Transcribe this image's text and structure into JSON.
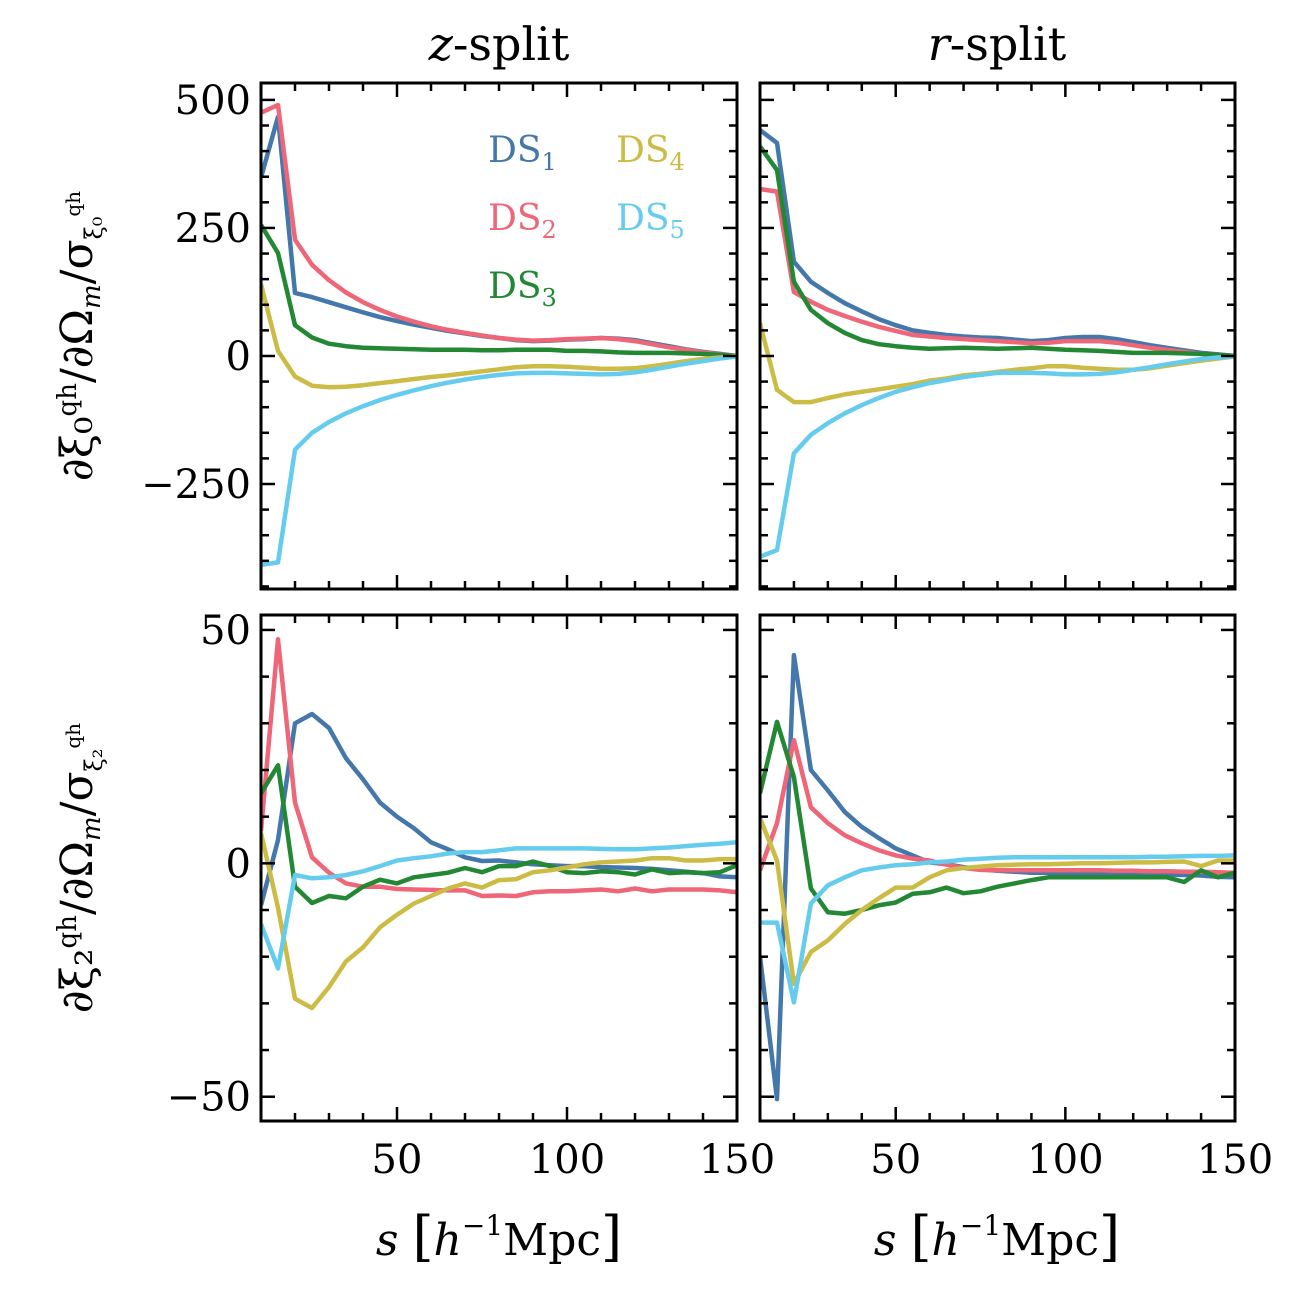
{
  "chart_data": {
    "type": "line",
    "layout": "2x2 grid",
    "columns": [
      {
        "title_var": "z",
        "title_rest": "-split"
      },
      {
        "title_var": "r",
        "title_rest": "-split"
      }
    ],
    "xlabel": {
      "var": "s",
      "unit_open": "[",
      "unit_h": "h",
      "unit_exp": "−1",
      "unit_rest": "Mpc",
      "unit_close": "]"
    },
    "rows": [
      {
        "ylabel": {
          "num": "∂ξ₀",
          "num_sup": "qh",
          "mid": "/∂Ω",
          "mid_sub": "m",
          "den": "/σ",
          "den_sub": "ξ₀",
          "den_sup": "qh"
        },
        "ylim": [
          -455,
          533
        ],
        "yticks": [
          500,
          250,
          0,
          -250
        ],
        "ytick_labels": [
          "500",
          "250",
          "0",
          "−250"
        ],
        "yminor_step": 50
      },
      {
        "ylabel": {
          "num": "∂ξ₂",
          "num_sup": "qh",
          "mid": "/∂Ω",
          "mid_sub": "m",
          "den": "/σ",
          "den_sub": "ξ₂",
          "den_sup": "qh"
        },
        "ylim": [
          -55.2,
          53.2
        ],
        "yticks": [
          50,
          0,
          -50
        ],
        "ytick_labels": [
          "50",
          "0",
          "−50"
        ],
        "yminor_step": 10
      }
    ],
    "xlim": [
      10,
      150
    ],
    "xticks": [
      50,
      100,
      150
    ],
    "xtick_labels": [
      "50",
      "100",
      "150"
    ],
    "xminor_step": 10,
    "x": [
      10,
      15,
      20,
      25,
      30,
      35,
      40,
      45,
      50,
      55,
      60,
      65,
      70,
      75,
      80,
      85,
      90,
      95,
      100,
      105,
      110,
      115,
      120,
      125,
      130,
      135,
      140,
      145,
      150
    ],
    "legend": {
      "placement": "top-right of top-left panel",
      "entries": [
        {
          "label": "DS",
          "sub": "1",
          "color": "#4477AA"
        },
        {
          "label": "DS",
          "sub": "2",
          "color": "#EE6677"
        },
        {
          "label": "DS",
          "sub": "3",
          "color": "#228833"
        },
        {
          "label": "DS",
          "sub": "4",
          "color": "#CCBB44"
        },
        {
          "label": "DS",
          "sub": "5",
          "color": "#66CCEE"
        }
      ]
    },
    "panels": [
      {
        "name": "z-split-monopole",
        "row": 0,
        "col": 0,
        "series": [
          {
            "name": "DS1",
            "color": "#4477AA",
            "values": [
              348,
              467,
              123,
              115,
              105,
              95,
              85,
              76,
              68,
              61,
              55,
              49,
              44,
              39,
              35,
              31,
              29,
              30,
              32,
              33,
              35,
              34,
              31,
              25,
              19,
              13,
              8,
              4,
              0
            ]
          },
          {
            "name": "DS2",
            "color": "#EE6677",
            "values": [
              475,
              490,
              227,
              178,
              148,
              124,
              105,
              90,
              77,
              67,
              58,
              51,
              45,
              40,
              35,
              32,
              30,
              31,
              33,
              34,
              35,
              33,
              29,
              23,
              17,
              12,
              7,
              3,
              0
            ]
          },
          {
            "name": "DS3",
            "color": "#228833",
            "values": [
              256,
              201,
              60,
              36,
              24,
              19,
              16,
              15,
              14,
              13,
              12,
              12,
              12,
              11,
              11,
              12,
              12,
              12,
              10,
              10,
              9,
              7,
              6,
              6,
              6,
              5,
              4,
              2,
              0
            ]
          },
          {
            "name": "DS4",
            "color": "#CCBB44",
            "values": [
              140,
              10,
              -40,
              -58,
              -61,
              -60,
              -57,
              -53,
              -49,
              -45,
              -41,
              -38,
              -34,
              -30,
              -26,
              -22,
              -20,
              -20,
              -21,
              -23,
              -25,
              -25,
              -24,
              -20,
              -15,
              -10,
              -6,
              -3,
              0
            ]
          },
          {
            "name": "DS5",
            "color": "#66CCEE",
            "values": [
              -408,
              -403,
              -183,
              -150,
              -129,
              -112,
              -98,
              -86,
              -76,
              -67,
              -59,
              -52,
              -46,
              -41,
              -37,
              -34,
              -33,
              -33,
              -34,
              -35,
              -36,
              -35,
              -32,
              -27,
              -21,
              -15,
              -10,
              -5,
              -1
            ]
          }
        ]
      },
      {
        "name": "r-split-monopole",
        "row": 0,
        "col": 1,
        "series": [
          {
            "name": "DS1",
            "color": "#4477AA",
            "values": [
              441,
              416,
              184,
              145,
              123,
              103,
              87,
              72,
              60,
              50,
              45,
              41,
              38,
              36,
              35,
              32,
              29,
              31,
              35,
              37,
              37,
              33,
              27,
              21,
              16,
              11,
              6,
              3,
              0
            ]
          },
          {
            "name": "DS2",
            "color": "#EE6677",
            "values": [
              326,
              321,
              125,
              106,
              90,
              78,
              67,
              57,
              49,
              41,
              38,
              35,
              33,
              31,
              29,
              27,
              25,
              26,
              29,
              29,
              29,
              26,
              21,
              16,
              12,
              8,
              4,
              2,
              0
            ]
          },
          {
            "name": "DS3",
            "color": "#228833",
            "values": [
              409,
              363,
              145,
              90,
              64,
              45,
              31,
              23,
              19,
              16,
              14,
              15,
              16,
              15,
              14,
              15,
              16,
              14,
              12,
              11,
              10,
              8,
              6,
              6,
              6,
              5,
              4,
              2,
              0
            ]
          },
          {
            "name": "DS4",
            "color": "#CCBB44",
            "values": [
              64,
              -66,
              -90,
              -90,
              -82,
              -75,
              -70,
              -65,
              -60,
              -55,
              -48,
              -44,
              -38,
              -35,
              -31,
              -27,
              -24,
              -20,
              -20,
              -23,
              -25,
              -27,
              -27,
              -24,
              -19,
              -14,
              -9,
              -5,
              -1
            ]
          },
          {
            "name": "DS5",
            "color": "#66CCEE",
            "values": [
              -392,
              -379,
              -190,
              -154,
              -131,
              -112,
              -96,
              -82,
              -70,
              -61,
              -53,
              -47,
              -41,
              -37,
              -33,
              -33,
              -33,
              -34,
              -36,
              -36,
              -35,
              -32,
              -27,
              -22,
              -16,
              -11,
              -6,
              -3,
              -1
            ]
          }
        ]
      },
      {
        "name": "z-split-quadrupole",
        "row": 1,
        "col": 0,
        "series": [
          {
            "name": "DS1",
            "color": "#4477AA",
            "values": [
              -9,
              5,
              30,
              32,
              29,
              22.5,
              18,
              13,
              10,
              7.5,
              4.5,
              3,
              1.3,
              0.5,
              0.6,
              0.2,
              -0.2,
              -0.4,
              -0.6,
              -0.6,
              -0.8,
              -0.9,
              -1,
              -1.2,
              -1.5,
              -1.8,
              -2.1,
              -2.8,
              -3
            ]
          },
          {
            "name": "DS2",
            "color": "#EE6677",
            "values": [
              7,
              48,
              13,
              1.3,
              -2,
              -4.3,
              -5,
              -5,
              -5.5,
              -5.6,
              -5.7,
              -5.8,
              -5.8,
              -7,
              -6.9,
              -7,
              -6.2,
              -6,
              -6,
              -5.8,
              -5.6,
              -6,
              -5.4,
              -6,
              -5.6,
              -5.6,
              -5.6,
              -5.8,
              -6.2
            ]
          },
          {
            "name": "DS3",
            "color": "#228833",
            "values": [
              15,
              21,
              -5,
              -8.5,
              -7,
              -7.5,
              -5,
              -3.5,
              -4.3,
              -3,
              -2.5,
              -2,
              -1,
              -1.9,
              -0.6,
              -0.6,
              0.4,
              -0.6,
              -1.9,
              -2.1,
              -1.7,
              -1.9,
              -2.4,
              -1.3,
              -2.1,
              -1.9,
              -2.1,
              -1.9,
              -0.4
            ]
          },
          {
            "name": "DS4",
            "color": "#CCBB44",
            "values": [
              6.5,
              -9.5,
              -29,
              -31,
              -26.5,
              -21,
              -18,
              -13.7,
              -11,
              -8.6,
              -7,
              -5.4,
              -4.3,
              -5.2,
              -3.6,
              -3.4,
              -1.9,
              -1.5,
              -0.9,
              -0.2,
              0.2,
              0.4,
              0.6,
              1.1,
              1.1,
              0.6,
              0.6,
              0.9,
              0.9
            ]
          },
          {
            "name": "DS5",
            "color": "#66CCEE",
            "values": [
              -13,
              -22.5,
              -2.5,
              -3.2,
              -3,
              -2.5,
              -1.7,
              -0.6,
              0.6,
              1.1,
              1.5,
              2.1,
              2.4,
              2.4,
              2.8,
              3.2,
              3.2,
              3.2,
              3.2,
              3.2,
              3.1,
              3,
              3,
              3.2,
              3.4,
              3.7,
              4,
              4.2,
              4.5
            ]
          }
        ]
      },
      {
        "name": "r-split-quadrupole",
        "row": 1,
        "col": 1,
        "series": [
          {
            "name": "DS1",
            "color": "#4477AA",
            "values": [
              -20,
              -50.5,
              44.6,
              20,
              15.6,
              11,
              7.8,
              5.4,
              3.2,
              1.7,
              0.2,
              -0.2,
              -0.8,
              -1.3,
              -1.6,
              -1.8,
              -2,
              -2,
              -2,
              -2.1,
              -2.2,
              -2.2,
              -2.3,
              -2.3,
              -2.4,
              -2.5,
              -2.6,
              -2.9,
              -3
            ]
          },
          {
            "name": "DS2",
            "color": "#EE6677",
            "values": [
              -1.5,
              8.6,
              26.4,
              12,
              8.6,
              6,
              4.3,
              2.8,
              1.7,
              1,
              0.6,
              -0.3,
              -1,
              -1.4,
              -1.5,
              -1.5,
              -1.5,
              -1.5,
              -1.5,
              -1.5,
              -1.5,
              -1.6,
              -1.6,
              -1.7,
              -1.7,
              -1.8,
              -1.8,
              -1.9,
              -2
            ]
          },
          {
            "name": "DS3",
            "color": "#228833",
            "values": [
              15,
              30.3,
              18.5,
              -5.4,
              -10.5,
              -10.8,
              -10,
              -9,
              -8.4,
              -6.5,
              -6.2,
              -5.2,
              -6.4,
              -6,
              -5,
              -4.3,
              -3.6,
              -3,
              -3,
              -3,
              -3,
              -3,
              -3,
              -3,
              -3,
              -4,
              -1.5,
              -3,
              -2
            ]
          },
          {
            "name": "DS4",
            "color": "#CCBB44",
            "values": [
              9.7,
              0.6,
              -25.8,
              -19,
              -16.5,
              -13,
              -10,
              -7.5,
              -5.2,
              -5.2,
              -3,
              -1.5,
              -1,
              -0.7,
              -0.4,
              -0.3,
              -0.2,
              -0.2,
              -0.1,
              0,
              0,
              0.1,
              0.2,
              0.2,
              0.3,
              0.4,
              -0.6,
              0.6,
              0.6
            ]
          },
          {
            "name": "DS5",
            "color": "#66CCEE",
            "values": [
              -12.7,
              -12.7,
              -29.8,
              -8.6,
              -4.7,
              -3,
              -1.5,
              -0.9,
              -0.4,
              -0.2,
              0.2,
              0.4,
              0.8,
              1,
              1.2,
              1.3,
              1.3,
              1.3,
              1.3,
              1.3,
              1.3,
              1.3,
              1.3,
              1.4,
              1.4,
              1.5,
              1.6,
              1.6,
              1.7
            ]
          }
        ]
      }
    ]
  }
}
